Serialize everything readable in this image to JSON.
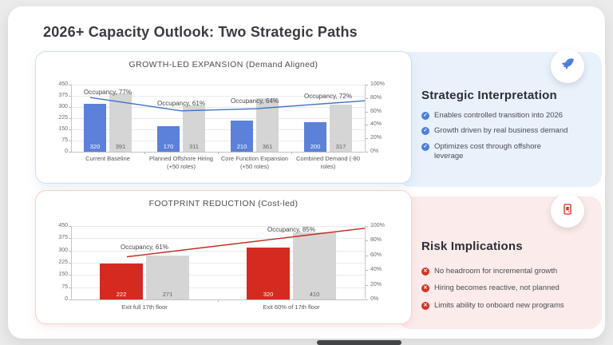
{
  "page": {
    "title": "2026+ Capacity Outlook: Two Strategic Paths"
  },
  "icons": {
    "check": "✓",
    "cross": "✕"
  },
  "panels": {
    "strategic": {
      "heading": "Strategic Interpretation",
      "items": [
        "Enables controlled transition into 2026",
        "Growth driven by real business demand",
        "Optimizes cost through offshore leverage"
      ],
      "accent": "#4d7fd9",
      "bg": "#e9f1fb"
    },
    "risk": {
      "heading": "Risk Implications",
      "items": [
        "No headroom for incremental growth",
        "Hiring becomes reactive, not planned",
        "Limits ability to onboard new programs"
      ],
      "accent": "#d63226",
      "bg": "#fbeceb"
    }
  },
  "chart_data": [
    {
      "type": "bar",
      "title": "GROWTH-LED EXPANSION (Demand Aligned)",
      "categories": [
        "Current Baseline",
        "Planned Offshore Hiring (+50 roles)",
        "Core Function Expansion (+50 roles)",
        "Combined Demand (-80 roles)"
      ],
      "series": [
        {
          "name": "blue-bars",
          "type": "bar",
          "color": "#5b81d8",
          "label_color": "#ffffff",
          "values": [
            320,
            170,
            210,
            200
          ]
        },
        {
          "name": "gray-bars",
          "type": "bar",
          "color": "#d5d5d5",
          "label_color": "#636363",
          "values": [
            391,
            311,
            361,
            317
          ]
        },
        {
          "name": "occupancy-line",
          "type": "line",
          "axis": "right",
          "color": "#4472c4",
          "values": [
            77,
            61,
            64,
            72
          ],
          "labels": [
            "Occupancy, 77%",
            "Occupancy, 61%",
            "Occupancy, 64%",
            "Occupancy, 72%"
          ]
        }
      ],
      "left_axis": {
        "ticks": [
          0,
          75,
          150,
          225,
          300,
          375,
          450
        ],
        "max": 450
      },
      "right_axis": {
        "ticks": [
          "0%",
          "20%",
          "40%",
          "60%",
          "80%",
          "100%"
        ],
        "max": 100
      },
      "grid": true,
      "legend": "none"
    },
    {
      "type": "bar",
      "title": "FOOTPRINT REDUCTION (Cost-led)",
      "categories": [
        "Exit full 17th floor",
        "Exit 60% of 17th floor"
      ],
      "series": [
        {
          "name": "red-bars",
          "type": "bar",
          "color": "#d42a20",
          "label_color": "#ffffff",
          "values": [
            222,
            320
          ]
        },
        {
          "name": "gray-bars",
          "type": "bar",
          "color": "#d5d5d5",
          "label_color": "#636363",
          "values": [
            271,
            410
          ]
        },
        {
          "name": "occupancy-line",
          "type": "line",
          "axis": "right",
          "color": "#c22a20",
          "values": [
            61,
            85
          ],
          "labels": [
            "Occupancy, 61%",
            "Occupancy, 85%"
          ]
        }
      ],
      "left_axis": {
        "ticks": [
          0,
          75,
          150,
          225,
          300,
          375,
          450
        ],
        "max": 450
      },
      "right_axis": {
        "ticks": [
          "0%",
          "20%",
          "40%",
          "60%",
          "80%",
          "100%"
        ],
        "max": 100
      },
      "grid": true,
      "legend": "none"
    }
  ]
}
